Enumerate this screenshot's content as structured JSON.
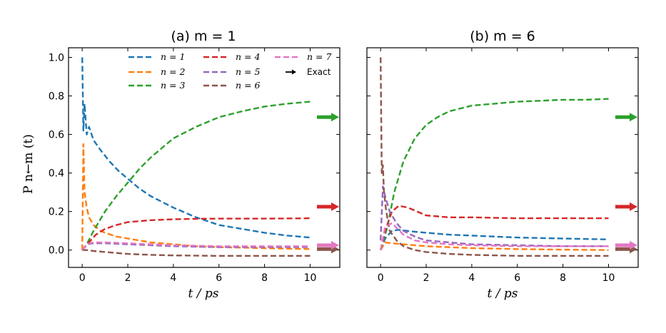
{
  "colors": {
    "n1": "#1f77b4",
    "n2": "#ff7f0e",
    "n3": "#2ca02c",
    "n4": "#d62728",
    "n5": "#9467bd",
    "n6": "#8c564b",
    "n7": "#e377c2",
    "exact": "#000000"
  },
  "legend": {
    "n1": "n = 1",
    "n2": "n = 2",
    "n3": "n = 3",
    "n4": "n = 4",
    "n5": "n = 5",
    "n6": "n = 6",
    "n7": "n = 7",
    "exact": "Exact"
  },
  "ylabel": "P n←m (t)",
  "xlabel": "t / ps",
  "chart_data": [
    {
      "type": "line",
      "title": "(a) m = 1",
      "xlabel": "t / ps",
      "ylabel": "P n←m (t)",
      "xlim": [
        -0.6,
        11.3
      ],
      "ylim": [
        -0.09,
        1.05
      ],
      "xticks": [
        0,
        2,
        4,
        6,
        8,
        10
      ],
      "xtick_labels": [
        "0",
        "2",
        "4",
        "6",
        "8",
        "10"
      ],
      "yticks": [
        0.0,
        0.2,
        0.4,
        0.6,
        0.8,
        1.0
      ],
      "ytick_labels": [
        "0.0",
        "0.2",
        "0.4",
        "0.6",
        "0.8",
        "1.0"
      ],
      "legend_position": "top",
      "series": [
        {
          "name": "n = 1",
          "x": [
            0,
            0.05,
            0.1,
            0.2,
            0.3,
            0.5,
            0.8,
            1.2,
            1.6,
            2,
            2.5,
            3,
            3.5,
            4,
            5,
            6,
            7,
            8,
            9,
            10
          ],
          "y": [
            1.0,
            0.62,
            0.76,
            0.6,
            0.64,
            0.57,
            0.52,
            0.46,
            0.41,
            0.37,
            0.32,
            0.28,
            0.25,
            0.22,
            0.17,
            0.13,
            0.11,
            0.09,
            0.075,
            0.065
          ]
        },
        {
          "name": "n = 2",
          "x": [
            0,
            0.05,
            0.1,
            0.2,
            0.3,
            0.5,
            0.8,
            1,
            1.5,
            2,
            3,
            4,
            5,
            6,
            8,
            10
          ],
          "y": [
            0.0,
            0.55,
            0.3,
            0.22,
            0.17,
            0.13,
            0.1,
            0.09,
            0.07,
            0.06,
            0.04,
            0.03,
            0.02,
            0.015,
            0.01,
            0.005
          ]
        },
        {
          "name": "n = 3",
          "x": [
            0,
            0.2,
            0.5,
            1,
            1.5,
            2,
            2.5,
            3,
            3.5,
            4,
            5,
            6,
            7,
            8,
            9,
            10
          ],
          "y": [
            0.0,
            0.03,
            0.1,
            0.2,
            0.28,
            0.35,
            0.42,
            0.48,
            0.53,
            0.58,
            0.64,
            0.69,
            0.72,
            0.745,
            0.76,
            0.77
          ]
        },
        {
          "name": "n = 4",
          "x": [
            0,
            0.3,
            0.6,
            1,
            1.5,
            2,
            3,
            4,
            5,
            6,
            8,
            10
          ],
          "y": [
            0.0,
            0.04,
            0.08,
            0.11,
            0.13,
            0.145,
            0.155,
            0.16,
            0.162,
            0.163,
            0.163,
            0.165
          ]
        },
        {
          "name": "n = 5",
          "x": [
            0,
            0.2,
            0.5,
            1,
            2,
            3,
            4,
            6,
            8,
            10
          ],
          "y": [
            0.0,
            0.03,
            0.035,
            0.035,
            0.03,
            0.025,
            0.02,
            0.015,
            0.015,
            0.015
          ]
        },
        {
          "name": "n = 6",
          "x": [
            0,
            0.2,
            0.5,
            1,
            2,
            3,
            4,
            6,
            8,
            10
          ],
          "y": [
            0.0,
            0.0,
            -0.005,
            -0.01,
            -0.02,
            -0.025,
            -0.028,
            -0.03,
            -0.03,
            -0.03
          ]
        },
        {
          "name": "n = 7",
          "x": [
            0,
            0.2,
            0.5,
            1,
            2,
            3,
            4,
            6,
            8,
            10
          ],
          "y": [
            0.0,
            0.03,
            0.04,
            0.04,
            0.035,
            0.03,
            0.025,
            0.02,
            0.02,
            0.02
          ]
        }
      ],
      "exact_arrows": [
        {
          "name": "n = 3",
          "y": 0.69
        },
        {
          "name": "n = 4",
          "y": 0.225
        },
        {
          "name": "n = 6",
          "y": 0.005
        },
        {
          "name": "n = 7",
          "y": 0.025
        }
      ]
    },
    {
      "type": "line",
      "title": "(b) m = 6",
      "xlabel": "t / ps",
      "ylabel": "",
      "xlim": [
        -0.6,
        11.3
      ],
      "ylim": [
        -0.09,
        1.05
      ],
      "xticks": [
        0,
        2,
        4,
        6,
        8,
        10
      ],
      "xtick_labels": [
        "0",
        "2",
        "4",
        "6",
        "8",
        "10"
      ],
      "yticks": [
        0.0,
        0.2,
        0.4,
        0.6,
        0.8,
        1.0
      ],
      "ytick_labels": [],
      "series": [
        {
          "name": "n = 1",
          "x": [
            0,
            0.2,
            0.5,
            0.8,
            1.5,
            2,
            3,
            4,
            6,
            8,
            10
          ],
          "y": [
            0.0,
            0.06,
            0.1,
            0.105,
            0.095,
            0.09,
            0.08,
            0.075,
            0.065,
            0.06,
            0.055
          ]
        },
        {
          "name": "n = 2",
          "x": [
            0,
            0.2,
            0.5,
            1,
            2,
            4,
            6,
            8,
            10
          ],
          "y": [
            0.0,
            0.04,
            0.035,
            0.03,
            0.02,
            0.01,
            0.005,
            0.002,
            0.0
          ]
        },
        {
          "name": "n = 3",
          "x": [
            0,
            0.3,
            0.6,
            1,
            1.5,
            2,
            2.5,
            3,
            4,
            5,
            6,
            7,
            8,
            9,
            10
          ],
          "y": [
            0.0,
            0.12,
            0.3,
            0.46,
            0.58,
            0.65,
            0.69,
            0.72,
            0.75,
            0.76,
            0.77,
            0.775,
            0.78,
            0.78,
            0.785
          ]
        },
        {
          "name": "n = 4",
          "x": [
            0,
            0.2,
            0.5,
            0.8,
            1.2,
            1.6,
            2,
            3,
            4,
            6,
            8,
            10
          ],
          "y": [
            0.0,
            0.1,
            0.2,
            0.23,
            0.22,
            0.2,
            0.18,
            0.17,
            0.17,
            0.165,
            0.165,
            0.165
          ]
        },
        {
          "name": "n = 5",
          "x": [
            0,
            0.1,
            0.2,
            0.4,
            0.7,
            1,
            1.5,
            2,
            3,
            4,
            6,
            8,
            10
          ],
          "y": [
            0.05,
            0.33,
            0.28,
            0.2,
            0.14,
            0.1,
            0.07,
            0.05,
            0.04,
            0.03,
            0.025,
            0.02,
            0.02
          ]
        },
        {
          "name": "n = 6",
          "x": [
            0,
            0.05,
            0.1,
            0.15,
            0.25,
            0.4,
            0.7,
            1,
            1.5,
            2,
            3,
            4,
            6,
            8,
            10
          ],
          "y": [
            1.0,
            0.4,
            0.44,
            0.3,
            0.2,
            0.1,
            0.05,
            0.02,
            0.0,
            -0.01,
            -0.02,
            -0.025,
            -0.03,
            -0.03,
            -0.03
          ]
        },
        {
          "name": "n = 7",
          "x": [
            0,
            0.2,
            0.5,
            1,
            1.5,
            2,
            3,
            4,
            6,
            8,
            10
          ],
          "y": [
            0.0,
            0.12,
            0.14,
            0.08,
            0.05,
            0.04,
            0.03,
            0.025,
            0.02,
            0.02,
            0.02
          ]
        }
      ],
      "exact_arrows": [
        {
          "name": "n = 3",
          "y": 0.69
        },
        {
          "name": "n = 4",
          "y": 0.225
        },
        {
          "name": "n = 6",
          "y": 0.005
        },
        {
          "name": "n = 7",
          "y": 0.025
        }
      ]
    }
  ]
}
